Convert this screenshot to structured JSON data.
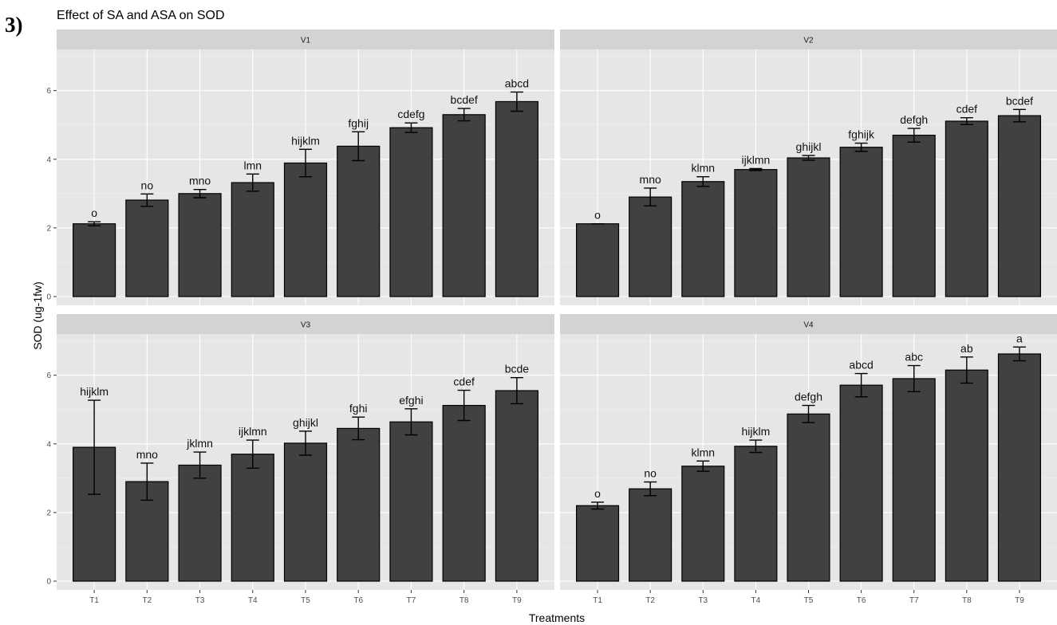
{
  "figure_label": "3)",
  "chart_data": {
    "type": "bar",
    "title": "Effect of SA and ASA on SOD",
    "xlabel": "Treatments",
    "ylabel": "SOD (ug-1fw)",
    "categories": [
      "T1",
      "T2",
      "T3",
      "T4",
      "T5",
      "T6",
      "T7",
      "T8",
      "T9"
    ],
    "ylim": [
      0,
      7.2
    ],
    "yticks": [
      0,
      2,
      4,
      6
    ],
    "grid": true,
    "bar_color": "#414141",
    "panel_color": "#e6e6e6",
    "strip_color": "#d3d3d3",
    "panels": [
      {
        "name": "V1",
        "values": [
          2.12,
          2.81,
          3.0,
          3.32,
          3.89,
          4.38,
          4.92,
          5.3,
          5.68
        ],
        "errors": [
          0.06,
          0.18,
          0.12,
          0.25,
          0.4,
          0.42,
          0.14,
          0.18,
          0.28
        ],
        "labels": [
          "o",
          "no",
          "mno",
          "lmn",
          "hijklm",
          "fghij",
          "cdefg",
          "bcdef",
          "abcd"
        ]
      },
      {
        "name": "V2",
        "values": [
          2.12,
          2.9,
          3.35,
          3.7,
          4.04,
          4.35,
          4.7,
          5.11,
          5.27
        ],
        "errors": [
          0.0,
          0.26,
          0.14,
          0.03,
          0.07,
          0.12,
          0.2,
          0.1,
          0.18
        ],
        "labels": [
          "o",
          "mno",
          "klmn",
          "ijklmn",
          "ghijkl",
          "fghijk",
          "defgh",
          "cdef",
          "bcdef"
        ]
      },
      {
        "name": "V3",
        "values": [
          3.9,
          2.9,
          3.38,
          3.7,
          4.02,
          4.45,
          4.64,
          5.12,
          5.55
        ],
        "errors": [
          1.37,
          0.54,
          0.38,
          0.41,
          0.35,
          0.33,
          0.38,
          0.44,
          0.38
        ],
        "labels": [
          "hijklm",
          "mno",
          "jklmn",
          "ijklmn",
          "ghijkl",
          "fghi",
          "efghi",
          "cdef",
          "bcde"
        ]
      },
      {
        "name": "V4",
        "values": [
          2.2,
          2.69,
          3.35,
          3.93,
          4.87,
          5.71,
          5.9,
          6.15,
          6.62
        ],
        "errors": [
          0.1,
          0.2,
          0.15,
          0.18,
          0.25,
          0.34,
          0.38,
          0.38,
          0.2
        ],
        "labels": [
          "o",
          "no",
          "klmn",
          "hijklm",
          "defgh",
          "abcd",
          "abc",
          "ab",
          "a"
        ]
      }
    ]
  }
}
